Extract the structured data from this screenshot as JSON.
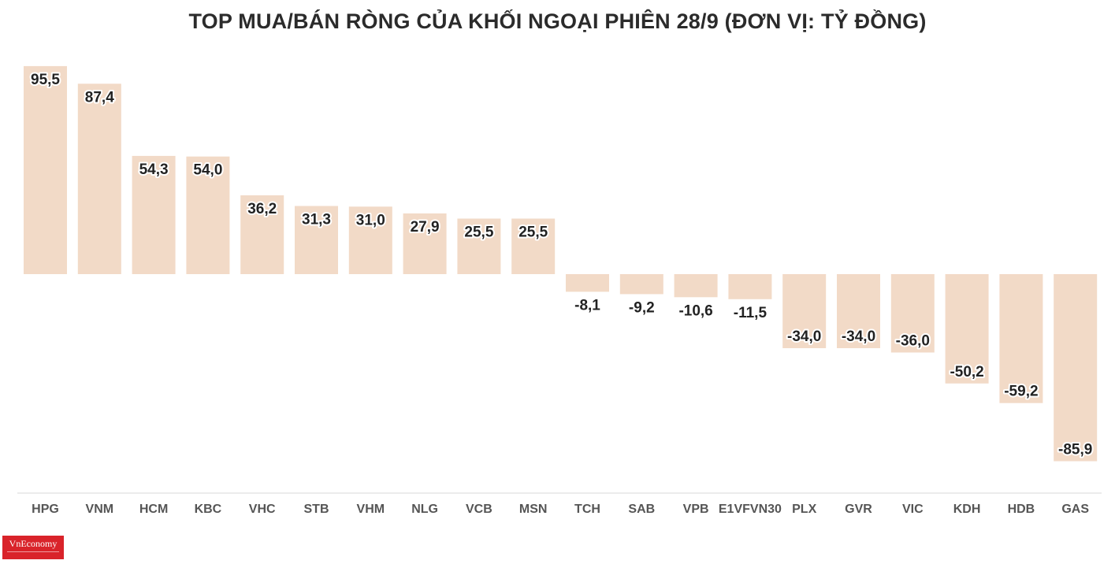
{
  "chart_data": {
    "type": "bar",
    "title": "TOP MUA/BÁN RÒNG CỦA KHỐI NGOẠI PHIÊN 28/9 (ĐƠN VỊ: TỶ ĐỒNG)",
    "categories": [
      "HPG",
      "VNM",
      "HCM",
      "KBC",
      "VHC",
      "STB",
      "VHM",
      "NLG",
      "VCB",
      "MSN",
      "TCH",
      "SAB",
      "VPB",
      "E1VFVN30",
      "PLX",
      "GVR",
      "VIC",
      "KDH",
      "HDB",
      "GAS"
    ],
    "values": [
      95.5,
      87.4,
      54.3,
      54.0,
      36.2,
      31.3,
      31.0,
      27.9,
      25.5,
      25.5,
      -8.1,
      -9.2,
      -10.6,
      -11.5,
      -34.0,
      -34.0,
      -36.0,
      -50.2,
      -59.2,
      -85.9
    ],
    "value_labels": [
      "95,5",
      "87,4",
      "54,3",
      "54,0",
      "36,2",
      "31,3",
      "31,0",
      "27,9",
      "25,5",
      "25,5",
      "-8,1",
      "-9,2",
      "-10,6",
      "-11,5",
      "-34,0",
      "-34,0",
      "-36,0",
      "-50,2",
      "-59,2",
      "-85,9"
    ],
    "xlabel": "",
    "ylabel": "",
    "ylim": [
      -100,
      100
    ],
    "grid": false,
    "bar_color": "#f2dac7",
    "label_color": "#222222"
  },
  "brand": {
    "logo_text": "VnEconomy",
    "logo_color": "#d9232a"
  }
}
